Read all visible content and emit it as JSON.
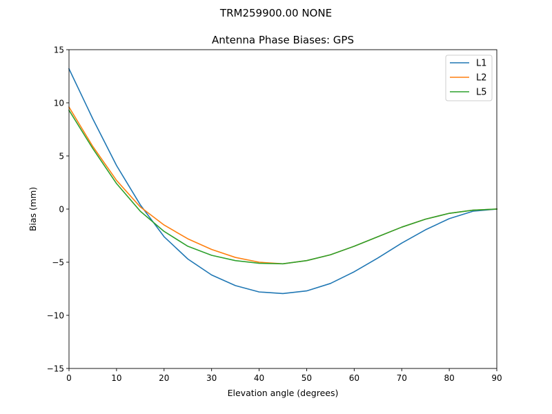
{
  "chart_data": {
    "type": "line",
    "suptitle": "TRM259900.00    NONE",
    "title": "Antenna Phase Biases: GPS",
    "xlabel": "Elevation angle (degrees)",
    "ylabel": "Bias (mm)",
    "xlim": [
      0,
      90
    ],
    "ylim": [
      -15,
      15
    ],
    "xticks": [
      0,
      10,
      20,
      30,
      40,
      50,
      60,
      70,
      80,
      90
    ],
    "yticks": [
      -15,
      -10,
      -5,
      0,
      5,
      10,
      15
    ],
    "ytick_labels": [
      "−15",
      "−10",
      "−5",
      "0",
      "5",
      "10",
      "15"
    ],
    "grid": false,
    "legend_position": "upper right",
    "x": [
      0,
      5,
      10,
      15,
      20,
      25,
      30,
      35,
      40,
      45,
      50,
      55,
      60,
      65,
      70,
      75,
      80,
      85,
      90
    ],
    "series": [
      {
        "name": "L1",
        "color": "#1f77b4",
        "values": [
          13.2,
          8.5,
          4.1,
          0.4,
          -2.6,
          -4.7,
          -6.2,
          -7.2,
          -7.8,
          -7.95,
          -7.7,
          -7.0,
          -5.9,
          -4.6,
          -3.2,
          -1.95,
          -0.9,
          -0.2,
          0.0
        ]
      },
      {
        "name": "L2",
        "color": "#ff7f0e",
        "values": [
          9.6,
          5.9,
          2.7,
          0.2,
          -1.5,
          -2.8,
          -3.8,
          -4.55,
          -5.0,
          -5.15,
          -4.85,
          -4.3,
          -3.5,
          -2.6,
          -1.7,
          -0.95,
          -0.4,
          -0.1,
          0.0
        ]
      },
      {
        "name": "L5",
        "color": "#2ca02c",
        "values": [
          9.3,
          5.7,
          2.4,
          -0.2,
          -2.1,
          -3.5,
          -4.35,
          -4.85,
          -5.1,
          -5.15,
          -4.85,
          -4.3,
          -3.5,
          -2.6,
          -1.7,
          -0.95,
          -0.4,
          -0.1,
          0.0
        ]
      }
    ]
  }
}
